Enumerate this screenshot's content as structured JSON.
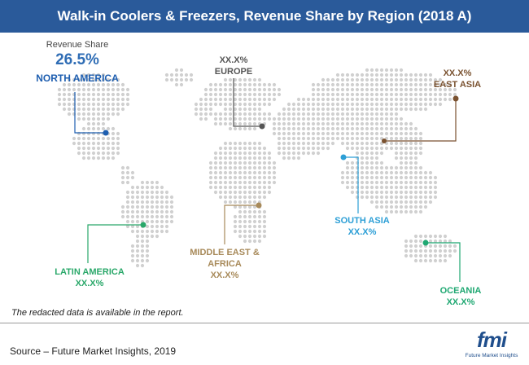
{
  "header": {
    "title": "Walk-in Coolers & Freezers, Revenue Share by Region (2018 A)"
  },
  "north_america": {
    "caption": "Revenue Share",
    "value": "26.5%",
    "name": "NORTH AMERICA",
    "color": "#1f5fb0"
  },
  "regions": {
    "europe": {
      "value": "XX.X%",
      "name": "EUROPE",
      "color": "#555555"
    },
    "east_asia": {
      "value": "XX.X%",
      "name": "EAST ASIA",
      "color": "#7a5230"
    },
    "south_asia": {
      "name": "SOUTH ASIA",
      "value": "XX.X%",
      "color": "#2d9fd6"
    },
    "middle_east_africa": {
      "name_line1": "MIDDLE EAST &",
      "name_line2": "AFRICA",
      "value": "XX.X%",
      "color": "#a88a5a"
    },
    "latin_america": {
      "name": "LATIN AMERICA",
      "value": "XX.X%",
      "color": "#2aa86a"
    },
    "oceania": {
      "name": "OCEANIA",
      "value": "XX.X%",
      "color": "#1fa872"
    }
  },
  "note": "The redacted data is available in the report.",
  "source": "Source – Future Market Insights, 2019",
  "logo": {
    "text": "fmi",
    "subtitle": "Future Market Insights"
  }
}
